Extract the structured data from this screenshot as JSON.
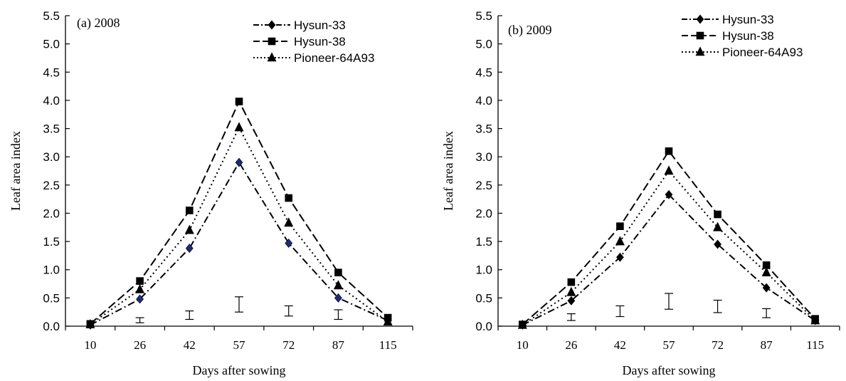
{
  "colors": {
    "ink": "#000000",
    "hysun33_marker_a": "#1e2a7a",
    "background": "#ffffff"
  },
  "chart_data": [
    {
      "type": "line",
      "panel_label": "(a) 2008",
      "xlabel": "Days after sowing",
      "ylabel": "Leaf area index",
      "categories": [
        "10",
        "26",
        "42",
        "57",
        "72",
        "87",
        "115"
      ],
      "y_ticks": [
        "0.0",
        "0.5",
        "1.0",
        "1.5",
        "2.0",
        "2.5",
        "3.0",
        "3.5",
        "4.0",
        "4.5",
        "5.0",
        "5.5"
      ],
      "ylim": [
        0,
        5.5
      ],
      "grid": false,
      "legend_position": "top-right",
      "series": [
        {
          "name": "Hysun-33",
          "marker": "diamond",
          "dash": "dashdot",
          "values": [
            0.02,
            0.48,
            1.38,
            2.9,
            1.47,
            0.5,
            0.1
          ]
        },
        {
          "name": "Hysun-38",
          "marker": "square",
          "dash": "dashed",
          "values": [
            0.04,
            0.8,
            2.05,
            3.98,
            2.27,
            0.95,
            0.15
          ]
        },
        {
          "name": "Pioneer-64A93",
          "marker": "triangle",
          "dash": "dotted",
          "values": [
            0.03,
            0.65,
            1.7,
            3.52,
            1.83,
            0.72,
            0.08
          ]
        }
      ],
      "error_bars": [
        {
          "x": "26",
          "low": 0.06,
          "high": 0.15
        },
        {
          "x": "42",
          "low": 0.12,
          "high": 0.27
        },
        {
          "x": "57",
          "low": 0.25,
          "high": 0.52
        },
        {
          "x": "72",
          "low": 0.18,
          "high": 0.36
        },
        {
          "x": "87",
          "low": 0.12,
          "high": 0.29
        }
      ]
    },
    {
      "type": "line",
      "panel_label": "(b) 2009",
      "xlabel": "Days after sowing",
      "ylabel": "Leaf area index",
      "categories": [
        "10",
        "26",
        "42",
        "57",
        "72",
        "87",
        "115"
      ],
      "y_ticks": [
        "0.0",
        "0.5",
        "1.0",
        "1.5",
        "2.0",
        "2.5",
        "3.0",
        "3.5",
        "4.0",
        "4.5",
        "5.0",
        "5.5"
      ],
      "ylim": [
        0,
        5.5
      ],
      "grid": false,
      "legend_position": "top-right",
      "series": [
        {
          "name": "Hysun-33",
          "marker": "diamond",
          "dash": "dashdot",
          "values": [
            0.02,
            0.45,
            1.22,
            2.33,
            1.45,
            0.68,
            0.1
          ]
        },
        {
          "name": "Hysun-38",
          "marker": "square",
          "dash": "dashed",
          "values": [
            0.03,
            0.78,
            1.77,
            3.1,
            1.98,
            1.08,
            0.13
          ]
        },
        {
          "name": "Pioneer-64A93",
          "marker": "triangle",
          "dash": "dotted",
          "values": [
            0.02,
            0.6,
            1.5,
            2.75,
            1.75,
            0.95,
            0.1
          ]
        }
      ],
      "error_bars": [
        {
          "x": "26",
          "low": 0.1,
          "high": 0.22
        },
        {
          "x": "42",
          "low": 0.17,
          "high": 0.36
        },
        {
          "x": "57",
          "low": 0.3,
          "high": 0.58
        },
        {
          "x": "72",
          "low": 0.24,
          "high": 0.46
        },
        {
          "x": "87",
          "low": 0.15,
          "high": 0.31
        }
      ]
    }
  ]
}
